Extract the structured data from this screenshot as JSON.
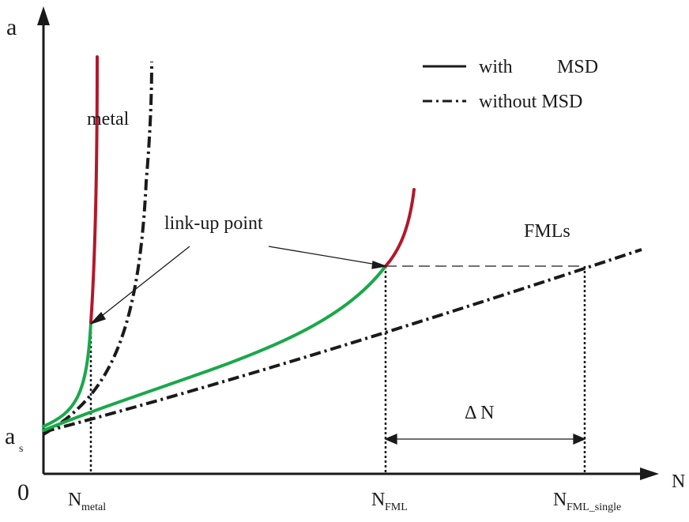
{
  "diagram": {
    "axes": {
      "y_label": "a",
      "x_label": "N",
      "origin_label": "0",
      "y_start_label": {
        "main": "a",
        "sub": "s"
      }
    },
    "x_ticks": [
      {
        "id": "n-metal",
        "main": "N",
        "sub": "metal"
      },
      {
        "id": "n-fml",
        "main": "N",
        "sub": "FML"
      },
      {
        "id": "n-fml-single",
        "main": "N",
        "sub": "FML_single"
      }
    ],
    "legend": {
      "solid_label": "with",
      "solid_label_2": "MSD",
      "dashed_label": "without MSD"
    },
    "annotations": {
      "metal": "metal",
      "fmls": "FMLs",
      "link_up": "link-up point",
      "delta_n": "Δ N"
    },
    "colors": {
      "axis": "#1a1a1a",
      "with_msd_early": "#1aa84a",
      "with_msd_late": "#b2182b",
      "without_msd": "#1a1a1a"
    }
  }
}
